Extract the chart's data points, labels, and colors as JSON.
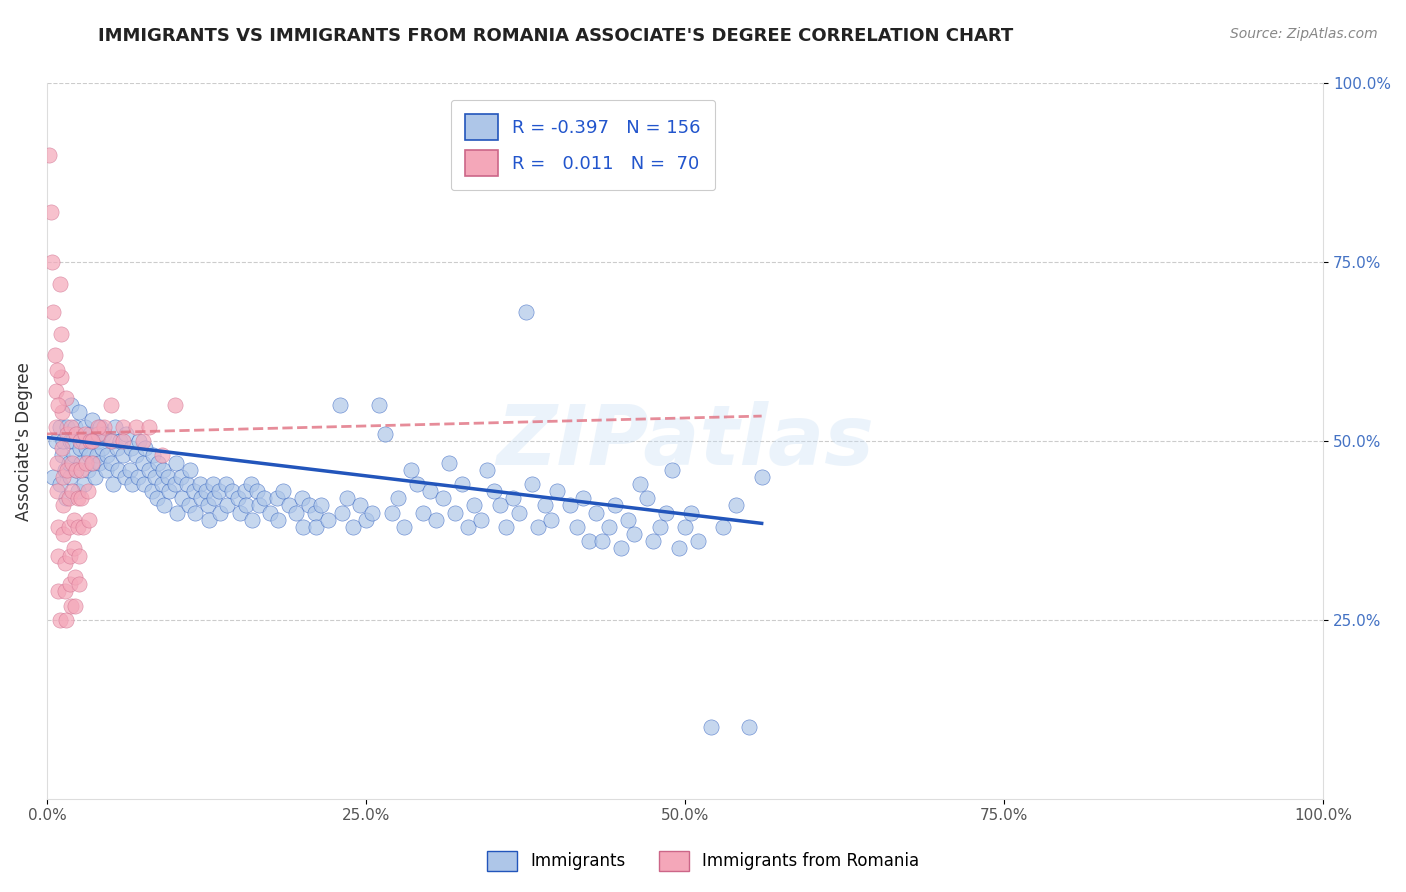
{
  "title": "IMMIGRANTS VS IMMIGRANTS FROM ROMANIA ASSOCIATE'S DEGREE CORRELATION CHART",
  "source": "Source: ZipAtlas.com",
  "ylabel": "Associate's Degree",
  "watermark": "ZIPatlas",
  "xlim": [
    0.0,
    1.0
  ],
  "ylim": [
    0.0,
    1.0
  ],
  "xticks": [
    0.0,
    0.25,
    0.5,
    0.75,
    1.0
  ],
  "xtick_labels": [
    "0.0%",
    "25.0%",
    "50.0%",
    "75.0%",
    "100.0%"
  ],
  "yticks": [
    0.25,
    0.5,
    0.75,
    1.0
  ],
  "ytick_labels": [
    "25.0%",
    "50.0%",
    "75.0%",
    "100.0%"
  ],
  "color_blue": "#aec6e8",
  "color_pink": "#f4a7b9",
  "line_blue": "#2255bb",
  "line_pink": "#e07080",
  "blue_scatter": [
    [
      0.005,
      0.45
    ],
    [
      0.007,
      0.5
    ],
    [
      0.01,
      0.52
    ],
    [
      0.01,
      0.44
    ],
    [
      0.012,
      0.48
    ],
    [
      0.013,
      0.5
    ],
    [
      0.014,
      0.46
    ],
    [
      0.015,
      0.42
    ],
    [
      0.016,
      0.52
    ],
    [
      0.017,
      0.47
    ],
    [
      0.018,
      0.45
    ],
    [
      0.018,
      0.5
    ],
    [
      0.019,
      0.55
    ],
    [
      0.02,
      0.5
    ],
    [
      0.021,
      0.48
    ],
    [
      0.022,
      0.52
    ],
    [
      0.023,
      0.46
    ],
    [
      0.024,
      0.43
    ],
    [
      0.025,
      0.54
    ],
    [
      0.026,
      0.49
    ],
    [
      0.027,
      0.47
    ],
    [
      0.028,
      0.5
    ],
    [
      0.029,
      0.44
    ],
    [
      0.03,
      0.52
    ],
    [
      0.031,
      0.49
    ],
    [
      0.032,
      0.46
    ],
    [
      0.033,
      0.48
    ],
    [
      0.034,
      0.51
    ],
    [
      0.035,
      0.53
    ],
    [
      0.036,
      0.47
    ],
    [
      0.037,
      0.5
    ],
    [
      0.038,
      0.45
    ],
    [
      0.039,
      0.48
    ],
    [
      0.04,
      0.5
    ],
    [
      0.041,
      0.47
    ],
    [
      0.042,
      0.52
    ],
    [
      0.043,
      0.49
    ],
    [
      0.045,
      0.51
    ],
    [
      0.046,
      0.46
    ],
    [
      0.047,
      0.48
    ],
    [
      0.05,
      0.47
    ],
    [
      0.051,
      0.5
    ],
    [
      0.052,
      0.44
    ],
    [
      0.053,
      0.52
    ],
    [
      0.055,
      0.49
    ],
    [
      0.056,
      0.46
    ],
    [
      0.057,
      0.5
    ],
    [
      0.06,
      0.48
    ],
    [
      0.061,
      0.45
    ],
    [
      0.062,
      0.51
    ],
    [
      0.065,
      0.46
    ],
    [
      0.066,
      0.49
    ],
    [
      0.067,
      0.44
    ],
    [
      0.07,
      0.48
    ],
    [
      0.071,
      0.45
    ],
    [
      0.072,
      0.5
    ],
    [
      0.075,
      0.47
    ],
    [
      0.076,
      0.44
    ],
    [
      0.077,
      0.49
    ],
    [
      0.08,
      0.46
    ],
    [
      0.082,
      0.43
    ],
    [
      0.083,
      0.48
    ],
    [
      0.085,
      0.45
    ],
    [
      0.086,
      0.42
    ],
    [
      0.087,
      0.47
    ],
    [
      0.09,
      0.44
    ],
    [
      0.091,
      0.46
    ],
    [
      0.092,
      0.41
    ],
    [
      0.095,
      0.45
    ],
    [
      0.096,
      0.43
    ],
    [
      0.1,
      0.44
    ],
    [
      0.101,
      0.47
    ],
    [
      0.102,
      0.4
    ],
    [
      0.105,
      0.45
    ],
    [
      0.106,
      0.42
    ],
    [
      0.11,
      0.44
    ],
    [
      0.111,
      0.41
    ],
    [
      0.112,
      0.46
    ],
    [
      0.115,
      0.43
    ],
    [
      0.116,
      0.4
    ],
    [
      0.12,
      0.44
    ],
    [
      0.121,
      0.42
    ],
    [
      0.125,
      0.43
    ],
    [
      0.126,
      0.41
    ],
    [
      0.127,
      0.39
    ],
    [
      0.13,
      0.44
    ],
    [
      0.131,
      0.42
    ],
    [
      0.135,
      0.43
    ],
    [
      0.136,
      0.4
    ],
    [
      0.14,
      0.44
    ],
    [
      0.141,
      0.41
    ],
    [
      0.145,
      0.43
    ],
    [
      0.15,
      0.42
    ],
    [
      0.151,
      0.4
    ],
    [
      0.155,
      0.43
    ],
    [
      0.156,
      0.41
    ],
    [
      0.16,
      0.44
    ],
    [
      0.161,
      0.39
    ],
    [
      0.165,
      0.43
    ],
    [
      0.166,
      0.41
    ],
    [
      0.17,
      0.42
    ],
    [
      0.175,
      0.4
    ],
    [
      0.18,
      0.42
    ],
    [
      0.181,
      0.39
    ],
    [
      0.185,
      0.43
    ],
    [
      0.19,
      0.41
    ],
    [
      0.195,
      0.4
    ],
    [
      0.2,
      0.42
    ],
    [
      0.201,
      0.38
    ],
    [
      0.205,
      0.41
    ],
    [
      0.21,
      0.4
    ],
    [
      0.211,
      0.38
    ],
    [
      0.215,
      0.41
    ],
    [
      0.22,
      0.39
    ],
    [
      0.23,
      0.55
    ],
    [
      0.231,
      0.4
    ],
    [
      0.235,
      0.42
    ],
    [
      0.24,
      0.38
    ],
    [
      0.245,
      0.41
    ],
    [
      0.25,
      0.39
    ],
    [
      0.255,
      0.4
    ],
    [
      0.26,
      0.55
    ],
    [
      0.265,
      0.51
    ],
    [
      0.27,
      0.4
    ],
    [
      0.275,
      0.42
    ],
    [
      0.28,
      0.38
    ],
    [
      0.285,
      0.46
    ],
    [
      0.29,
      0.44
    ],
    [
      0.295,
      0.4
    ],
    [
      0.3,
      0.43
    ],
    [
      0.305,
      0.39
    ],
    [
      0.31,
      0.42
    ],
    [
      0.315,
      0.47
    ],
    [
      0.32,
      0.4
    ],
    [
      0.325,
      0.44
    ],
    [
      0.33,
      0.38
    ],
    [
      0.335,
      0.41
    ],
    [
      0.34,
      0.39
    ],
    [
      0.345,
      0.46
    ],
    [
      0.35,
      0.43
    ],
    [
      0.355,
      0.41
    ],
    [
      0.36,
      0.38
    ],
    [
      0.365,
      0.42
    ],
    [
      0.37,
      0.4
    ],
    [
      0.375,
      0.68
    ],
    [
      0.38,
      0.44
    ],
    [
      0.385,
      0.38
    ],
    [
      0.39,
      0.41
    ],
    [
      0.395,
      0.39
    ],
    [
      0.4,
      0.43
    ],
    [
      0.41,
      0.41
    ],
    [
      0.415,
      0.38
    ],
    [
      0.42,
      0.42
    ],
    [
      0.425,
      0.36
    ],
    [
      0.43,
      0.4
    ],
    [
      0.435,
      0.36
    ],
    [
      0.44,
      0.38
    ],
    [
      0.445,
      0.41
    ],
    [
      0.45,
      0.35
    ],
    [
      0.455,
      0.39
    ],
    [
      0.46,
      0.37
    ],
    [
      0.465,
      0.44
    ],
    [
      0.47,
      0.42
    ],
    [
      0.475,
      0.36
    ],
    [
      0.48,
      0.38
    ],
    [
      0.485,
      0.4
    ],
    [
      0.49,
      0.46
    ],
    [
      0.495,
      0.35
    ],
    [
      0.5,
      0.38
    ],
    [
      0.505,
      0.4
    ],
    [
      0.51,
      0.36
    ],
    [
      0.52,
      0.1
    ],
    [
      0.53,
      0.38
    ],
    [
      0.54,
      0.41
    ],
    [
      0.55,
      0.1
    ],
    [
      0.56,
      0.45
    ]
  ],
  "pink_scatter": [
    [
      0.002,
      0.9
    ],
    [
      0.003,
      0.82
    ],
    [
      0.004,
      0.75
    ],
    [
      0.005,
      0.68
    ],
    [
      0.006,
      0.62
    ],
    [
      0.007,
      0.57
    ],
    [
      0.007,
      0.52
    ],
    [
      0.008,
      0.47
    ],
    [
      0.008,
      0.43
    ],
    [
      0.009,
      0.38
    ],
    [
      0.009,
      0.34
    ],
    [
      0.009,
      0.29
    ],
    [
      0.01,
      0.25
    ],
    [
      0.01,
      0.72
    ],
    [
      0.011,
      0.65
    ],
    [
      0.011,
      0.59
    ],
    [
      0.012,
      0.54
    ],
    [
      0.012,
      0.49
    ],
    [
      0.013,
      0.45
    ],
    [
      0.013,
      0.41
    ],
    [
      0.013,
      0.37
    ],
    [
      0.014,
      0.33
    ],
    [
      0.014,
      0.29
    ],
    [
      0.015,
      0.25
    ],
    [
      0.015,
      0.56
    ],
    [
      0.016,
      0.51
    ],
    [
      0.016,
      0.46
    ],
    [
      0.017,
      0.42
    ],
    [
      0.017,
      0.38
    ],
    [
      0.018,
      0.34
    ],
    [
      0.018,
      0.3
    ],
    [
      0.019,
      0.27
    ],
    [
      0.019,
      0.52
    ],
    [
      0.02,
      0.47
    ],
    [
      0.02,
      0.43
    ],
    [
      0.021,
      0.39
    ],
    [
      0.021,
      0.35
    ],
    [
      0.022,
      0.31
    ],
    [
      0.022,
      0.27
    ],
    [
      0.023,
      0.51
    ],
    [
      0.023,
      0.46
    ],
    [
      0.024,
      0.42
    ],
    [
      0.024,
      0.38
    ],
    [
      0.025,
      0.34
    ],
    [
      0.025,
      0.3
    ],
    [
      0.026,
      0.5
    ],
    [
      0.027,
      0.46
    ],
    [
      0.027,
      0.42
    ],
    [
      0.028,
      0.38
    ],
    [
      0.03,
      0.51
    ],
    [
      0.031,
      0.47
    ],
    [
      0.032,
      0.43
    ],
    [
      0.033,
      0.39
    ],
    [
      0.034,
      0.5
    ],
    [
      0.035,
      0.47
    ],
    [
      0.04,
      0.51
    ],
    [
      0.045,
      0.52
    ],
    [
      0.05,
      0.5
    ],
    [
      0.06,
      0.52
    ],
    [
      0.07,
      0.52
    ],
    [
      0.075,
      0.5
    ],
    [
      0.08,
      0.52
    ],
    [
      0.09,
      0.48
    ],
    [
      0.1,
      0.55
    ],
    [
      0.04,
      0.52
    ],
    [
      0.035,
      0.5
    ],
    [
      0.05,
      0.55
    ],
    [
      0.06,
      0.5
    ],
    [
      0.008,
      0.6
    ],
    [
      0.009,
      0.55
    ]
  ],
  "blue_line_x": [
    0.0,
    0.56
  ],
  "blue_line_y": [
    0.505,
    0.385
  ],
  "pink_line_x": [
    0.0,
    0.56
  ],
  "pink_line_y": [
    0.51,
    0.535
  ]
}
